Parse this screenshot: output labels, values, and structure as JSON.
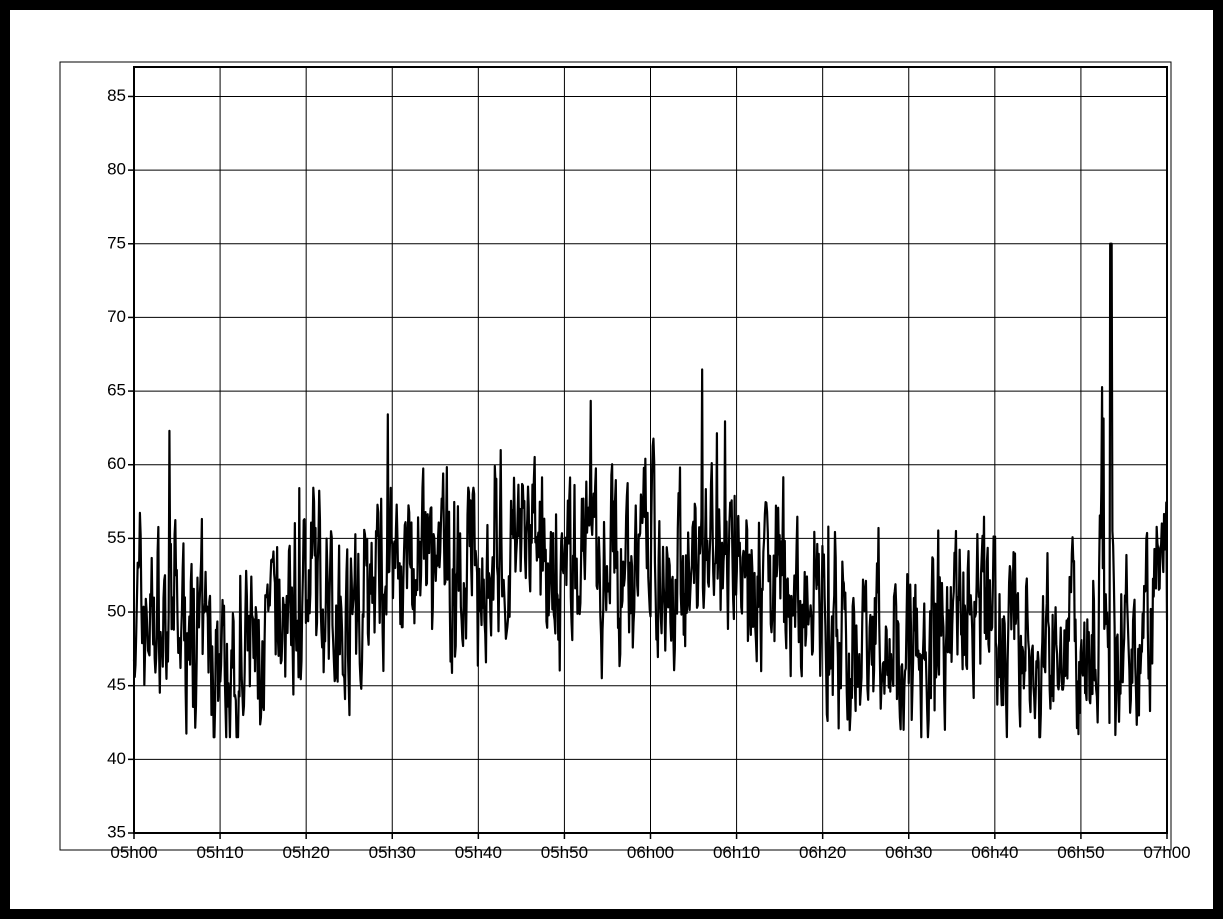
{
  "chart_data": {
    "type": "line",
    "title": "",
    "xlabel": "",
    "ylabel": "",
    "x_ticks": [
      "05h00",
      "05h10",
      "05h20",
      "05h30",
      "05h40",
      "05h50",
      "06h00",
      "06h10",
      "06h20",
      "06h30",
      "06h40",
      "06h50",
      "07h00"
    ],
    "xlim": [
      "05h00",
      "07h00"
    ],
    "y_ticks": [
      35,
      40,
      45,
      50,
      55,
      60,
      65,
      70,
      75,
      80,
      85
    ],
    "ylim": [
      35,
      87
    ],
    "grid": true,
    "legend": "none",
    "line_color": "#000000",
    "series": [
      {
        "x_minutes_from_start": [
          0,
          5,
          10,
          15,
          20,
          25,
          30,
          35,
          40,
          45,
          50,
          55,
          60,
          65,
          70,
          75,
          80,
          85,
          90,
          95,
          100,
          105,
          110,
          112,
          113,
          114,
          115,
          120
        ],
        "values": [
          50,
          49,
          46,
          47,
          52,
          50,
          54,
          52,
          53,
          55,
          53,
          54,
          54,
          53,
          53,
          52,
          49,
          48,
          48,
          49,
          50,
          46,
          47,
          47,
          75,
          46,
          48,
          51
        ],
        "notes": "noisy series sampled every ~5s; values listed are representative local levels"
      }
    ]
  }
}
